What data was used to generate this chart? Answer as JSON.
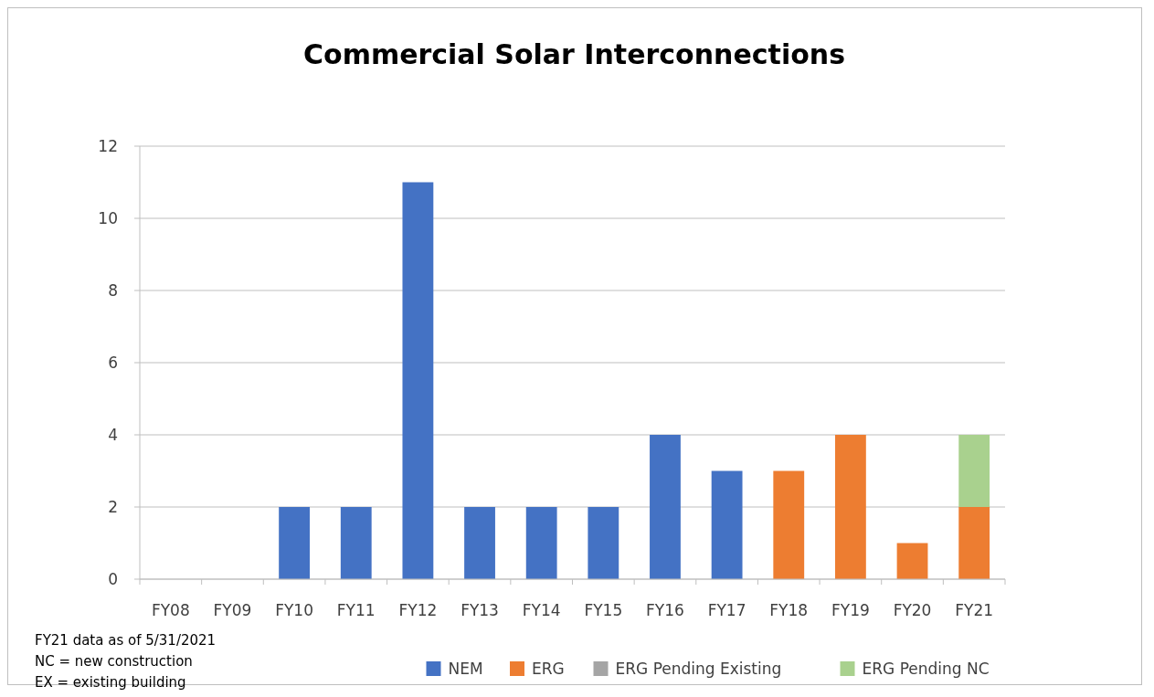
{
  "chart_data": {
    "type": "bar",
    "title": "Commercial Solar Interconnections",
    "stacked": true,
    "categories": [
      "FY08",
      "FY09",
      "FY10",
      "FY11",
      "FY12",
      "FY13",
      "FY14",
      "FY15",
      "FY16",
      "FY17",
      "FY18",
      "FY19",
      "FY20",
      "FY21"
    ],
    "series": [
      {
        "name": "NEM",
        "color": "#4472c4",
        "values": [
          0,
          0,
          2,
          2,
          11,
          2,
          2,
          2,
          4,
          3,
          0,
          0,
          0,
          0
        ]
      },
      {
        "name": "ERG",
        "color": "#ed7d31",
        "values": [
          0,
          0,
          0,
          0,
          0,
          0,
          0,
          0,
          0,
          0,
          3,
          4,
          1,
          2
        ]
      },
      {
        "name": "ERG Pending Existing",
        "color": "#a5a5a5",
        "values": [
          0,
          0,
          0,
          0,
          0,
          0,
          0,
          0,
          0,
          0,
          0,
          0,
          0,
          0
        ]
      },
      {
        "name": "ERG Pending NC",
        "color": "#a9d18e",
        "values": [
          0,
          0,
          0,
          0,
          0,
          0,
          0,
          0,
          0,
          0,
          0,
          0,
          0,
          2
        ]
      }
    ],
    "ylim": [
      0,
      12
    ],
    "yticks": [
      0,
      2,
      4,
      6,
      8,
      10,
      12
    ],
    "grid": "y",
    "legend": "bottom",
    "annotations": [
      "FY21 data as of 5/31/2021",
      "NC = new construction",
      "EX = existing building"
    ]
  }
}
